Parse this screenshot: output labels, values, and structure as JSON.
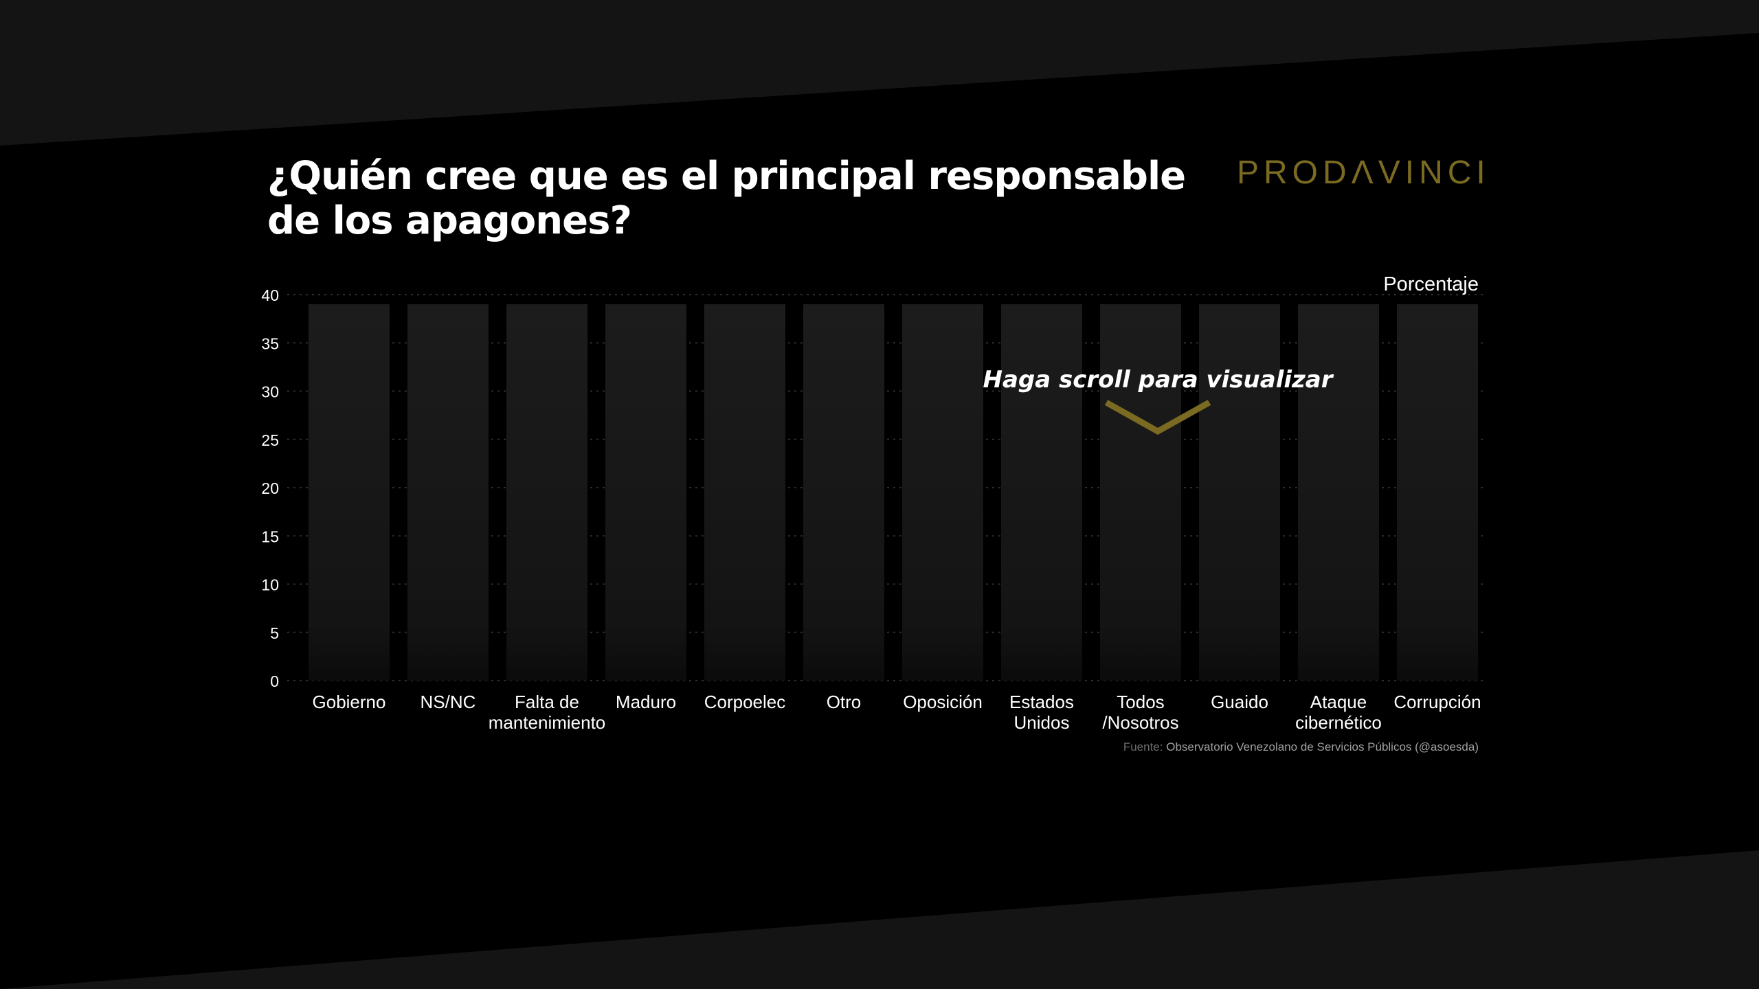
{
  "header": {
    "title_line1": "¿Quién cree que es el principal responsable",
    "title_line2": "de los apagones?",
    "logo_text": "PRODΛVINCI"
  },
  "scroll_hint": {
    "label": "Haga scroll para visualizar"
  },
  "source": {
    "prefix": "Fuente:",
    "text": "Observatorio Venezolano de Servicios Públicos (@asoesda)"
  },
  "colors": {
    "background": "#000000",
    "band": "#141414",
    "logo": "#7a6a22",
    "arrow": "#7a6a22",
    "bar_top": "#1c1c1c",
    "bar_bottom": "#0b0b0b"
  },
  "chart_data": {
    "type": "bar",
    "ylabel": "Porcentaje",
    "ylim": [
      0,
      40
    ],
    "yticks": [
      "0",
      "5",
      "10",
      "15",
      "20",
      "25",
      "30",
      "35",
      "40"
    ],
    "grid": true,
    "categories": [
      [
        "Gobierno"
      ],
      [
        "NS/NC"
      ],
      [
        "Falta de",
        "mantenimiento"
      ],
      [
        "Maduro"
      ],
      [
        "Corpoelec"
      ],
      [
        "Otro"
      ],
      [
        "Oposición"
      ],
      [
        "Estados",
        "Unidos"
      ],
      [
        "Todos",
        "/Nosotros"
      ],
      [
        "Guaido"
      ],
      [
        "Ataque",
        "cibernético"
      ],
      [
        "Corrupción"
      ]
    ],
    "values": [
      40,
      40,
      40,
      40,
      40,
      40,
      40,
      40,
      40,
      40,
      40,
      40
    ]
  }
}
